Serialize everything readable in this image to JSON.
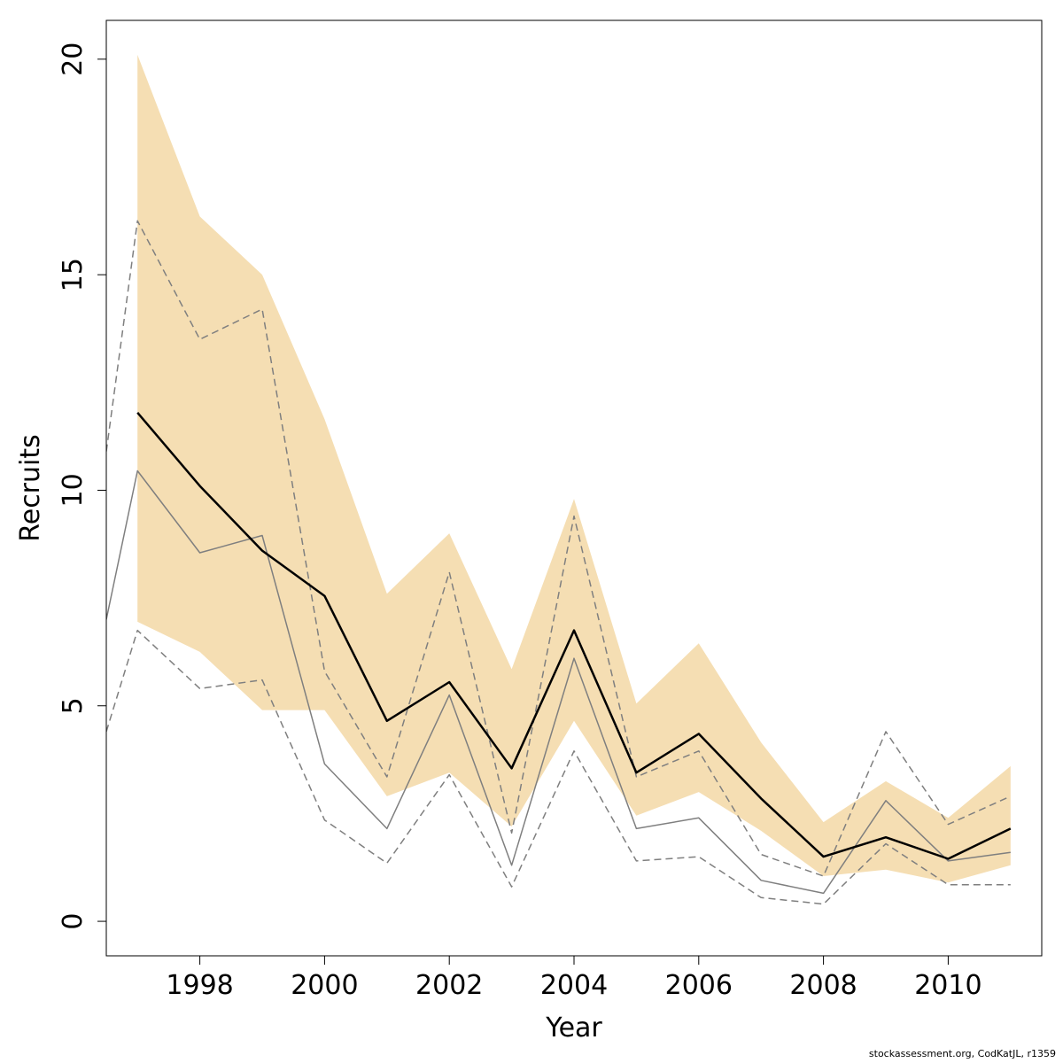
{
  "chart_data": {
    "type": "line",
    "xlabel": "Year",
    "ylabel": "Recruits",
    "xlim": [
      1996.5,
      2011.5
    ],
    "ylim": [
      -0.8,
      20.9
    ],
    "xticks": [
      1998,
      2000,
      2002,
      2004,
      2006,
      2008,
      2010
    ],
    "yticks": [
      0,
      5,
      10,
      15,
      20
    ],
    "x": [
      1997,
      1998,
      1999,
      2000,
      2001,
      2002,
      2003,
      2004,
      2005,
      2006,
      2007,
      2008,
      2009,
      2010,
      2011
    ],
    "band": {
      "color": "#f5deb3",
      "lower": [
        6.95,
        6.25,
        4.9,
        4.9,
        2.9,
        3.45,
        2.2,
        4.65,
        2.45,
        3.0,
        2.1,
        1.05,
        1.2,
        0.9,
        1.3
      ],
      "upper": [
        20.1,
        16.35,
        15.0,
        11.65,
        7.6,
        9.0,
        5.85,
        9.8,
        5.05,
        6.45,
        4.15,
        2.3,
        3.25,
        2.4,
        3.6
      ]
    },
    "series": [
      {
        "color": "#000000",
        "style": "solid",
        "width": 2.5,
        "x": [
          1997,
          1998,
          1999,
          2000,
          2001,
          2002,
          2003,
          2004,
          2005,
          2006,
          2007,
          2008,
          2009,
          2010,
          2011
        ],
        "values": [
          11.8,
          10.1,
          8.6,
          7.55,
          4.65,
          5.55,
          3.55,
          6.75,
          3.45,
          4.35,
          2.85,
          1.5,
          1.95,
          1.45,
          2.15
        ]
      },
      {
        "color": "#7f7f7f",
        "style": "solid",
        "width": 1.5,
        "x": [
          1996.5,
          1997,
          1998,
          1999,
          2000,
          2001,
          2002,
          2003,
          2004,
          2005,
          2006,
          2007,
          2008,
          2009,
          2010,
          2011
        ],
        "values": [
          7.0,
          10.45,
          8.55,
          8.95,
          3.65,
          2.15,
          5.25,
          1.3,
          6.1,
          2.15,
          2.4,
          0.95,
          0.65,
          2.8,
          1.4,
          1.6
        ]
      },
      {
        "color": "#7f7f7f",
        "style": "dashed",
        "width": 1.5,
        "x": [
          1996.5,
          1997,
          1998,
          1999,
          2000,
          2001,
          2002,
          2003,
          2004,
          2005,
          2006,
          2007,
          2008,
          2009,
          2010,
          2011
        ],
        "values": [
          10.9,
          16.25,
          13.5,
          14.2,
          5.8,
          3.35,
          8.1,
          2.05,
          9.4,
          3.35,
          3.95,
          1.55,
          1.05,
          4.4,
          2.25,
          2.9
        ]
      },
      {
        "color": "#7f7f7f",
        "style": "dashed",
        "width": 1.5,
        "x": [
          1996.5,
          1997,
          1998,
          1999,
          2000,
          2001,
          2002,
          2003,
          2004,
          2005,
          2006,
          2007,
          2008,
          2009,
          2010,
          2011
        ],
        "values": [
          4.4,
          6.75,
          5.4,
          5.6,
          2.35,
          1.35,
          3.4,
          0.8,
          3.95,
          1.4,
          1.5,
          0.55,
          0.4,
          1.8,
          0.85,
          0.85
        ]
      }
    ]
  },
  "footer": {
    "credit": "stockassessment.org, CodKatJL, r1359"
  }
}
